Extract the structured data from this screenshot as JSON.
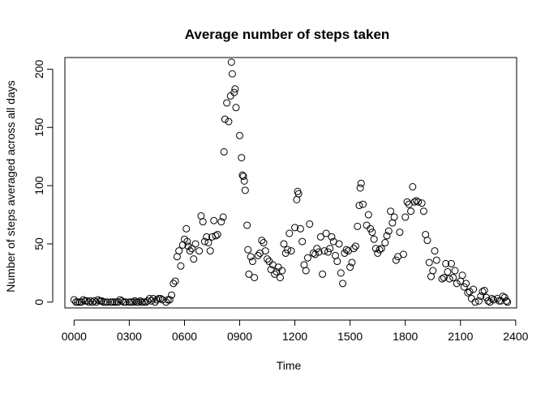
{
  "chart_data": {
    "type": "scatter",
    "title": "Average number of steps taken",
    "xlabel": "Time",
    "ylabel": "Number of steps averaged across all days",
    "xlim": [
      -50,
      2405
    ],
    "ylim": [
      -5,
      210
    ],
    "xticks": [
      0,
      300,
      600,
      900,
      1200,
      1500,
      1800,
      2100,
      2400
    ],
    "xtick_labels": [
      "0000",
      "0300",
      "0600",
      "0900",
      "1200",
      "1500",
      "1800",
      "2100",
      "2400"
    ],
    "yticks": [
      0,
      50,
      100,
      150,
      200
    ],
    "ytick_labels": [
      "0",
      "50",
      "100",
      "150",
      "200"
    ],
    "grid": false,
    "series": [
      {
        "marker": "open-circle",
        "points": [
          [
            0,
            2
          ],
          [
            10,
            0
          ],
          [
            20,
            0
          ],
          [
            30,
            0
          ],
          [
            40,
            0
          ],
          [
            50,
            2
          ],
          [
            60,
            1
          ],
          [
            70,
            1
          ],
          [
            80,
            0
          ],
          [
            90,
            1
          ],
          [
            100,
            0
          ],
          [
            110,
            1
          ],
          [
            120,
            0
          ],
          [
            130,
            2
          ],
          [
            140,
            1
          ],
          [
            150,
            1
          ],
          [
            160,
            0
          ],
          [
            170,
            0
          ],
          [
            180,
            0
          ],
          [
            200,
            0
          ],
          [
            210,
            0
          ],
          [
            220,
            0
          ],
          [
            230,
            0
          ],
          [
            240,
            0
          ],
          [
            250,
            2
          ],
          [
            260,
            1
          ],
          [
            270,
            0
          ],
          [
            280,
            0
          ],
          [
            300,
            0
          ],
          [
            310,
            0
          ],
          [
            320,
            0
          ],
          [
            330,
            1
          ],
          [
            340,
            0
          ],
          [
            350,
            0
          ],
          [
            360,
            1
          ],
          [
            370,
            0
          ],
          [
            380,
            0
          ],
          [
            390,
            0
          ],
          [
            400,
            1
          ],
          [
            410,
            3
          ],
          [
            420,
            1
          ],
          [
            430,
            3
          ],
          [
            440,
            0
          ],
          [
            450,
            2
          ],
          [
            460,
            3
          ],
          [
            470,
            3
          ],
          [
            480,
            2
          ],
          [
            500,
            0
          ],
          [
            510,
            2
          ],
          [
            520,
            2
          ],
          [
            530,
            6
          ],
          [
            540,
            16
          ],
          [
            550,
            18
          ],
          [
            560,
            39
          ],
          [
            570,
            44
          ],
          [
            580,
            31
          ],
          [
            590,
            49
          ],
          [
            600,
            54
          ],
          [
            610,
            63
          ],
          [
            615,
            52
          ],
          [
            620,
            48
          ],
          [
            630,
            44
          ],
          [
            640,
            46
          ],
          [
            650,
            37
          ],
          [
            660,
            50
          ],
          [
            680,
            44
          ],
          [
            690,
            74
          ],
          [
            700,
            69
          ],
          [
            710,
            52
          ],
          [
            720,
            56
          ],
          [
            730,
            51
          ],
          [
            740,
            44
          ],
          [
            750,
            56
          ],
          [
            760,
            70
          ],
          [
            770,
            57
          ],
          [
            780,
            58
          ],
          [
            800,
            69
          ],
          [
            810,
            73
          ],
          [
            815,
            129
          ],
          [
            820,
            157
          ],
          [
            830,
            171
          ],
          [
            840,
            155
          ],
          [
            850,
            177
          ],
          [
            855,
            206
          ],
          [
            860,
            196
          ],
          [
            870,
            180
          ],
          [
            875,
            183
          ],
          [
            880,
            167
          ],
          [
            900,
            143
          ],
          [
            910,
            124
          ],
          [
            915,
            109
          ],
          [
            920,
            108
          ],
          [
            925,
            104
          ],
          [
            930,
            96
          ],
          [
            940,
            66
          ],
          [
            945,
            45
          ],
          [
            950,
            24
          ],
          [
            960,
            39
          ],
          [
            970,
            35
          ],
          [
            980,
            21
          ],
          [
            1000,
            40
          ],
          [
            1010,
            42
          ],
          [
            1020,
            53
          ],
          [
            1030,
            51
          ],
          [
            1040,
            44
          ],
          [
            1050,
            37
          ],
          [
            1060,
            35
          ],
          [
            1070,
            28
          ],
          [
            1080,
            32
          ],
          [
            1090,
            24
          ],
          [
            1100,
            26
          ],
          [
            1110,
            30
          ],
          [
            1120,
            21
          ],
          [
            1130,
            27
          ],
          [
            1140,
            50
          ],
          [
            1150,
            42
          ],
          [
            1160,
            45
          ],
          [
            1170,
            59
          ],
          [
            1180,
            44
          ],
          [
            1200,
            64
          ],
          [
            1210,
            88
          ],
          [
            1215,
            95
          ],
          [
            1220,
            93
          ],
          [
            1230,
            63
          ],
          [
            1240,
            52
          ],
          [
            1250,
            32
          ],
          [
            1260,
            27
          ],
          [
            1270,
            38
          ],
          [
            1280,
            67
          ],
          [
            1300,
            42
          ],
          [
            1310,
            41
          ],
          [
            1320,
            46
          ],
          [
            1330,
            43
          ],
          [
            1340,
            56
          ],
          [
            1350,
            24
          ],
          [
            1360,
            44
          ],
          [
            1370,
            59
          ],
          [
            1380,
            43
          ],
          [
            1390,
            46
          ],
          [
            1400,
            56
          ],
          [
            1410,
            52
          ],
          [
            1420,
            40
          ],
          [
            1430,
            35
          ],
          [
            1440,
            50
          ],
          [
            1450,
            25
          ],
          [
            1460,
            16
          ],
          [
            1470,
            42
          ],
          [
            1480,
            45
          ],
          [
            1490,
            44
          ],
          [
            1500,
            30
          ],
          [
            1510,
            34
          ],
          [
            1520,
            46
          ],
          [
            1530,
            48
          ],
          [
            1540,
            65
          ],
          [
            1550,
            83
          ],
          [
            1555,
            98
          ],
          [
            1560,
            102
          ],
          [
            1570,
            84
          ],
          [
            1590,
            66
          ],
          [
            1600,
            75
          ],
          [
            1610,
            63
          ],
          [
            1620,
            60
          ],
          [
            1630,
            54
          ],
          [
            1640,
            46
          ],
          [
            1650,
            42
          ],
          [
            1660,
            45
          ],
          [
            1670,
            46
          ],
          [
            1690,
            51
          ],
          [
            1700,
            57
          ],
          [
            1710,
            61
          ],
          [
            1720,
            78
          ],
          [
            1730,
            68
          ],
          [
            1740,
            73
          ],
          [
            1750,
            36
          ],
          [
            1760,
            39
          ],
          [
            1770,
            60
          ],
          [
            1790,
            41
          ],
          [
            1800,
            73
          ],
          [
            1810,
            86
          ],
          [
            1820,
            84
          ],
          [
            1830,
            78
          ],
          [
            1840,
            99
          ],
          [
            1850,
            86
          ],
          [
            1860,
            87
          ],
          [
            1870,
            86
          ],
          [
            1890,
            85
          ],
          [
            1900,
            78
          ],
          [
            1910,
            58
          ],
          [
            1920,
            53
          ],
          [
            1930,
            34
          ],
          [
            1940,
            22
          ],
          [
            1950,
            27
          ],
          [
            1960,
            44
          ],
          [
            1970,
            36
          ],
          [
            2000,
            20
          ],
          [
            2010,
            21
          ],
          [
            2020,
            33
          ],
          [
            2030,
            26
          ],
          [
            2040,
            20
          ],
          [
            2050,
            33
          ],
          [
            2060,
            21
          ],
          [
            2070,
            27
          ],
          [
            2080,
            16
          ],
          [
            2100,
            18
          ],
          [
            2110,
            23
          ],
          [
            2120,
            13
          ],
          [
            2130,
            16
          ],
          [
            2140,
            8
          ],
          [
            2150,
            9
          ],
          [
            2160,
            3
          ],
          [
            2170,
            11
          ],
          [
            2180,
            0
          ],
          [
            2200,
            1
          ],
          [
            2210,
            5
          ],
          [
            2220,
            9
          ],
          [
            2230,
            10
          ],
          [
            2240,
            4
          ],
          [
            2250,
            1
          ],
          [
            2260,
            0
          ],
          [
            2270,
            3
          ],
          [
            2280,
            2
          ],
          [
            2300,
            3
          ],
          [
            2310,
            1
          ],
          [
            2320,
            1
          ],
          [
            2330,
            5
          ],
          [
            2340,
            4
          ],
          [
            2350,
            1
          ],
          [
            2355,
            0
          ]
        ]
      }
    ]
  }
}
